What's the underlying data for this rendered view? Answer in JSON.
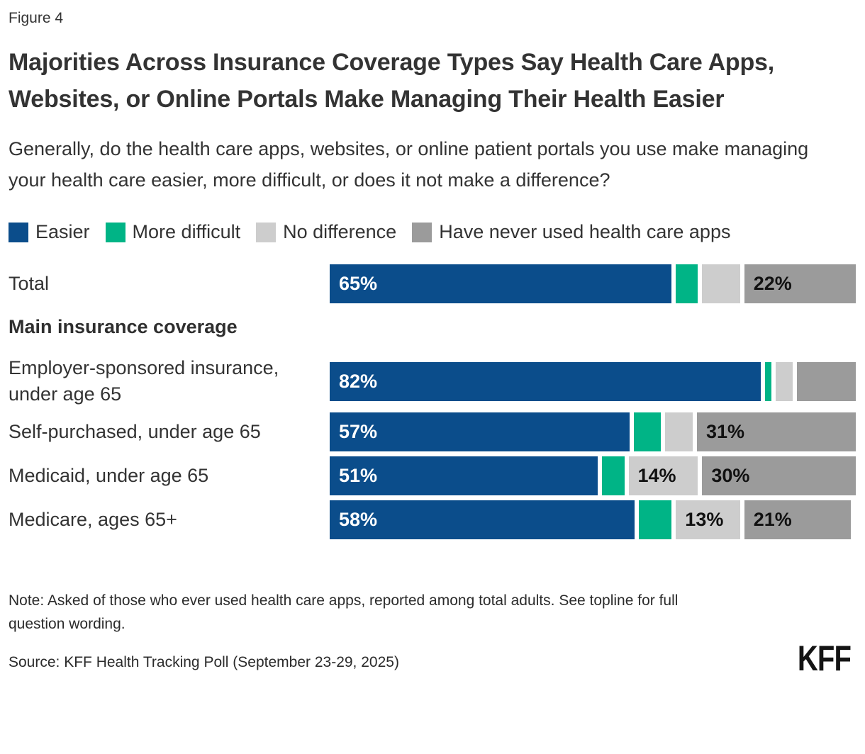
{
  "figure_label": "Figure 4",
  "title": "Majorities Across Insurance Coverage Types Say Health Care Apps, Websites, or Online Portals Make Managing Their Health Easier",
  "subtitle": "Generally, do the health care apps, websites, or online patient portals you use make managing your health care easier, more difficult, or does it not make a difference?",
  "colors": {
    "easier": "#0b4d8b",
    "more_difficult": "#00b486",
    "no_difference": "#cdcdcd",
    "never_used": "#9b9b9b",
    "label_on_dark": "#ffffff",
    "label_on_light": "#111111"
  },
  "legend": [
    {
      "label": "Easier",
      "color_key": "easier"
    },
    {
      "label": "More difficult",
      "color_key": "more_difficult"
    },
    {
      "label": "No difference",
      "color_key": "no_difference"
    },
    {
      "label": "Have never used health care apps",
      "color_key": "never_used"
    }
  ],
  "chart_data": {
    "type": "bar",
    "orientation": "horizontal",
    "stacked": true,
    "xlim": [
      0,
      100
    ],
    "series_names": [
      "Easier",
      "More difficult",
      "No difference",
      "Have never used health care apps"
    ],
    "color_keys": [
      "easier",
      "more_difficult",
      "no_difference",
      "never_used"
    ],
    "groups": [
      {
        "header": "",
        "rows": [
          {
            "label": "Total",
            "values": [
              65,
              5,
              8,
              22
            ],
            "shown_labels": [
              "65%",
              "",
              "",
              "22%"
            ]
          }
        ]
      },
      {
        "header": "Main insurance coverage",
        "rows": [
          {
            "label": "Employer-sponsored insurance, under age 65",
            "values": [
              82,
              2,
              4,
              12
            ],
            "shown_labels": [
              "82%",
              "",
              "",
              ""
            ]
          },
          {
            "label": "Self-purchased, under age 65",
            "values": [
              57,
              6,
              6,
              31
            ],
            "shown_labels": [
              "57%",
              "",
              "",
              "31%"
            ]
          },
          {
            "label": "Medicaid, under age 65",
            "values": [
              51,
              5,
              14,
              30
            ],
            "shown_labels": [
              "51%",
              "",
              "14%",
              "30%"
            ]
          },
          {
            "label": "Medicare, ages 65+",
            "values": [
              58,
              7,
              13,
              21
            ],
            "shown_labels": [
              "58%",
              "",
              "13%",
              "21%"
            ]
          }
        ]
      }
    ]
  },
  "note": "Note: Asked of those who ever used health care apps, reported among total adults. See topline for full question wording.",
  "source": "Source: KFF Health Tracking Poll (September 23-29, 2025)",
  "logo": "KFF"
}
